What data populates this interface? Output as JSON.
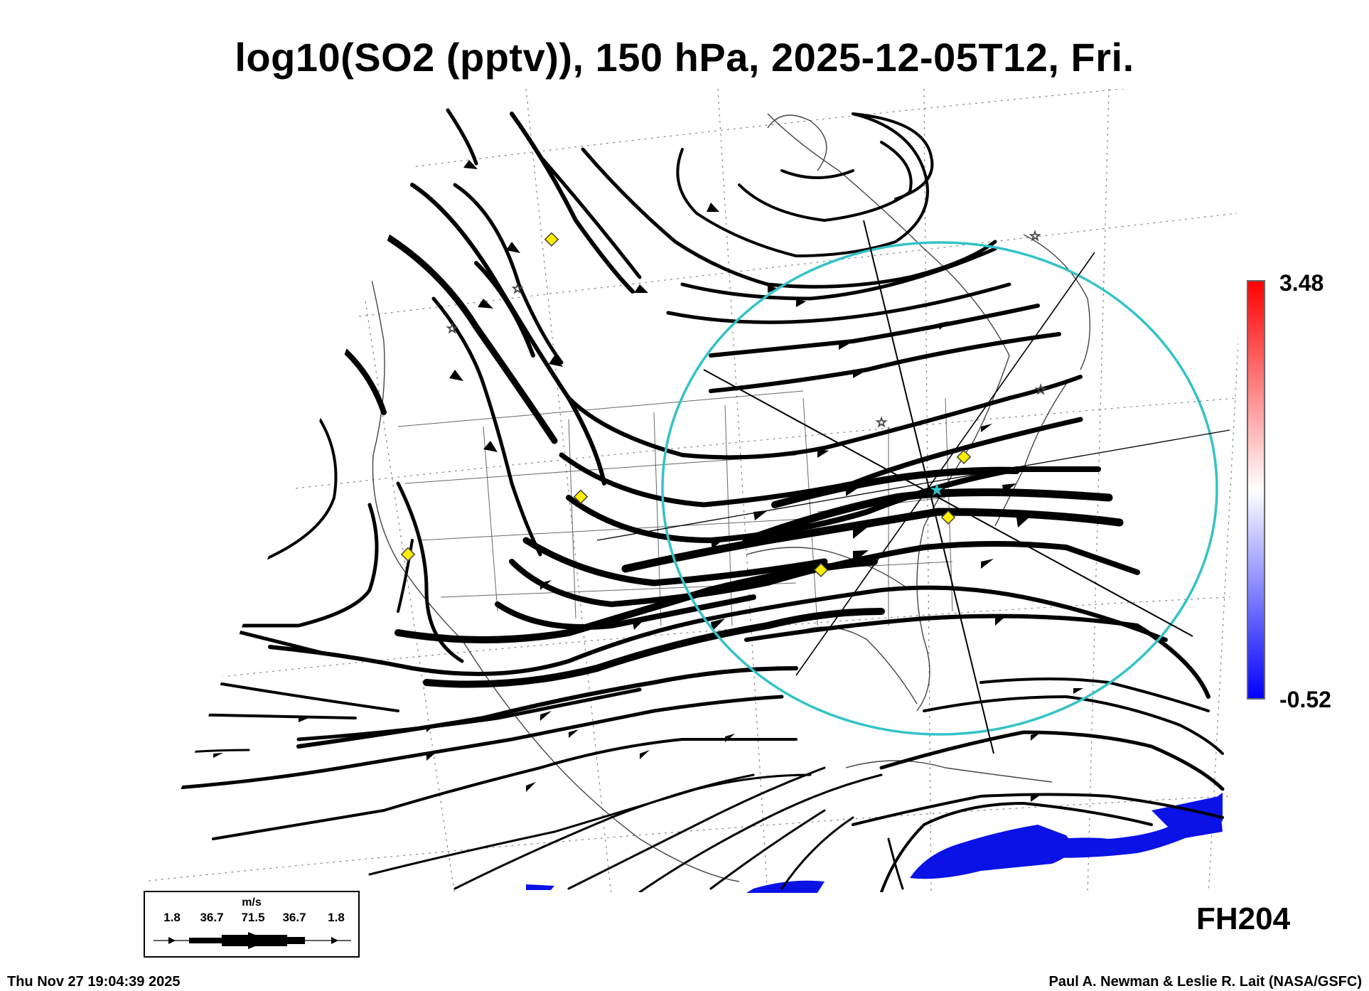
{
  "title": "log10(SO2 (pptv)), 150 hPa, 2025-12-05T12, Fri.",
  "colorbar": {
    "max_label": "3.48",
    "min_label": "-0.52",
    "colors": [
      "#0000ff",
      "#ffffff",
      "#ff0000"
    ]
  },
  "forecast_hour": "FH204",
  "legend": {
    "unit": "m/s",
    "ticks": [
      "1.8",
      "36.7",
      "71.5",
      "36.7",
      "1.8"
    ]
  },
  "timestamp": "Thu Nov 27 19:04:39 2025",
  "credit": "Paul A. Newman & Leslie R. Lait (NASA/GSFC)",
  "overlay": {
    "circle_color": "#33c3c8",
    "marker_color": "#ffee00",
    "so2_color": "#0a12e6"
  }
}
